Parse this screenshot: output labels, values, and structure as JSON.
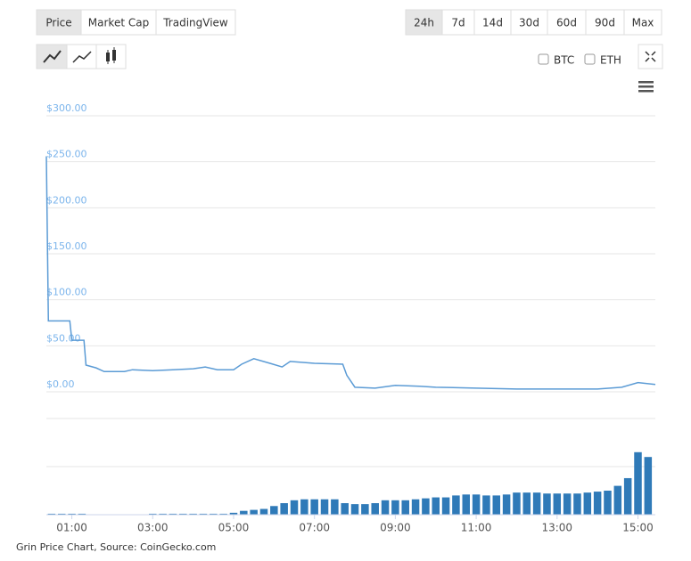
{
  "chart_data": {
    "type": "line",
    "tabs": [
      "Price",
      "Market Cap",
      "TradingView"
    ],
    "ranges": [
      "24h",
      "7d",
      "14d",
      "30d",
      "60d",
      "90d",
      "Max"
    ],
    "compare": [
      "BTC",
      "ETH"
    ],
    "caption": "Grin Price Chart, Source: CoinGecko.com",
    "color": "#5b9bd5",
    "grid": true,
    "xlim": [
      0.37,
      15.43
    ],
    "xticks": [
      {
        "value": 1,
        "label": "01:00"
      },
      {
        "value": 3,
        "label": "03:00"
      },
      {
        "value": 5,
        "label": "05:00"
      },
      {
        "value": 7,
        "label": "07:00"
      },
      {
        "value": 9,
        "label": "09:00"
      },
      {
        "value": 11,
        "label": "11:00"
      },
      {
        "value": 13,
        "label": "13:00"
      },
      {
        "value": 15,
        "label": "15:00"
      }
    ],
    "ylim": [
      0,
      300
    ],
    "yticks": [
      {
        "value": 0,
        "label": "$0.00"
      },
      {
        "value": 50,
        "label": "$50.00"
      },
      {
        "value": 100,
        "label": "$100.00"
      },
      {
        "value": 150,
        "label": "$150.00"
      },
      {
        "value": 200,
        "label": "$200.00"
      },
      {
        "value": 250,
        "label": "$250.00"
      },
      {
        "value": 300,
        "label": "$300.00"
      }
    ],
    "x": [
      0.37,
      0.42,
      0.95,
      1.0,
      1.3,
      1.35,
      1.6,
      1.8,
      2.3,
      2.5,
      3.0,
      3.5,
      4.0,
      4.3,
      4.6,
      5.0,
      5.2,
      5.5,
      5.9,
      6.2,
      6.4,
      7.0,
      7.7,
      7.8,
      8.0,
      8.5,
      9.0,
      9.6,
      10.0,
      11.0,
      12.0,
      13.0,
      14.0,
      14.6,
      15.0,
      15.43
    ],
    "series": [
      {
        "name": "Price",
        "color": "#5b9bd5",
        "values": [
          256,
          77,
          77,
          56,
          56,
          29,
          26,
          22,
          22,
          24,
          23,
          24,
          25,
          27,
          24,
          24,
          30,
          36,
          31,
          27,
          33,
          31,
          30,
          18,
          5,
          4,
          7,
          6,
          5,
          4,
          3,
          3,
          3,
          5,
          10,
          8
        ]
      }
    ],
    "volume": {
      "color": "#2f7ab8",
      "ylim": [
        0,
        100
      ],
      "x": [
        0.5,
        0.75,
        1.0,
        1.25,
        3.0,
        3.25,
        3.5,
        3.75,
        4.0,
        4.25,
        4.5,
        4.75,
        5.0,
        5.25,
        5.5,
        5.75,
        6.0,
        6.25,
        6.5,
        6.75,
        7.0,
        7.25,
        7.5,
        7.75,
        8.0,
        8.25,
        8.5,
        8.75,
        9.0,
        9.25,
        9.5,
        9.75,
        10.0,
        10.25,
        10.5,
        10.75,
        11.0,
        11.25,
        11.5,
        11.75,
        12.0,
        12.25,
        12.5,
        12.75,
        13.0,
        13.25,
        13.5,
        13.75,
        14.0,
        14.25,
        14.5,
        14.75,
        15.0,
        15.25
      ],
      "values": [
        1,
        1,
        1,
        1,
        1,
        1,
        1,
        1,
        1,
        1,
        1,
        1,
        2,
        4,
        5,
        6,
        9,
        12,
        15,
        16,
        16,
        16,
        16,
        12,
        11,
        11,
        12,
        15,
        15,
        15,
        16,
        17,
        18,
        18,
        20,
        21,
        21,
        20,
        20,
        21,
        23,
        23,
        23,
        22,
        22,
        22,
        22,
        23,
        24,
        25,
        30,
        38,
        65,
        60
      ]
    }
  }
}
